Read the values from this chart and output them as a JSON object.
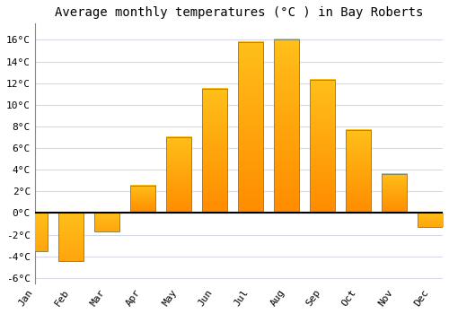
{
  "months": [
    "Jan",
    "Feb",
    "Mar",
    "Apr",
    "May",
    "Jun",
    "Jul",
    "Aug",
    "Sep",
    "Oct",
    "Nov",
    "Dec"
  ],
  "temperatures": [
    -3.5,
    -4.4,
    -1.7,
    2.5,
    7.0,
    11.5,
    15.8,
    16.0,
    12.3,
    7.7,
    3.6,
    -1.3
  ],
  "title": "Average monthly temperatures (°C ) in Bay Roberts",
  "ylim": [
    -6.5,
    17.5
  ],
  "yticks": [
    -6,
    -4,
    -2,
    0,
    2,
    4,
    6,
    8,
    10,
    12,
    14,
    16
  ],
  "bar_color_top": "#FFB300",
  "bar_color_bottom": "#FF8C00",
  "bar_edge_color": "#888855",
  "background_color": "#ffffff",
  "plot_bg_color": "#ffffff",
  "grid_color": "#d8d8e8",
  "zero_line_color": "#000000",
  "title_fontsize": 10,
  "tick_fontsize": 8,
  "label_rotation": 55
}
